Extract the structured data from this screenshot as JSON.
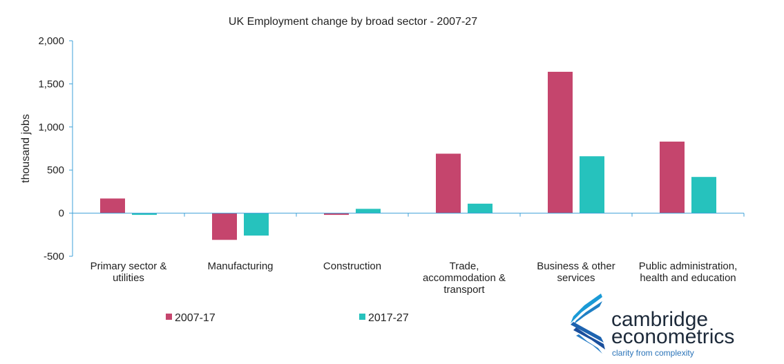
{
  "chart_data": {
    "type": "bar",
    "title": "UK Employment change by broad sector -  2007-27",
    "ylabel": "thousand jobs",
    "xlabel": "",
    "ylim": [
      -500,
      2000
    ],
    "yticks": [
      2000,
      1500,
      1000,
      500,
      0,
      -500
    ],
    "ytick_labels": [
      "2,000",
      "1,500",
      "1,000",
      "500",
      "0",
      "-500"
    ],
    "categories": [
      [
        "Primary sector &",
        "utilities"
      ],
      [
        "Manufacturing"
      ],
      [
        "Construction"
      ],
      [
        "Trade,",
        "accommodation &",
        "transport"
      ],
      [
        "Business & other",
        "services"
      ],
      [
        "Public administration,",
        "health and education"
      ]
    ],
    "series": [
      {
        "name": "2007-17",
        "color": "#c5456d",
        "values": [
          170,
          -310,
          -20,
          690,
          1640,
          830
        ]
      },
      {
        "name": "2017-27",
        "color": "#26c2bd",
        "values": [
          -20,
          -260,
          50,
          110,
          660,
          420
        ]
      }
    ],
    "axis_color": "#3fa1d8",
    "legend_position": "bottom-left",
    "grid": false
  },
  "logo": {
    "line1": "cambridge",
    "line2": "econometrics",
    "tagline": "clarity from complexity"
  }
}
